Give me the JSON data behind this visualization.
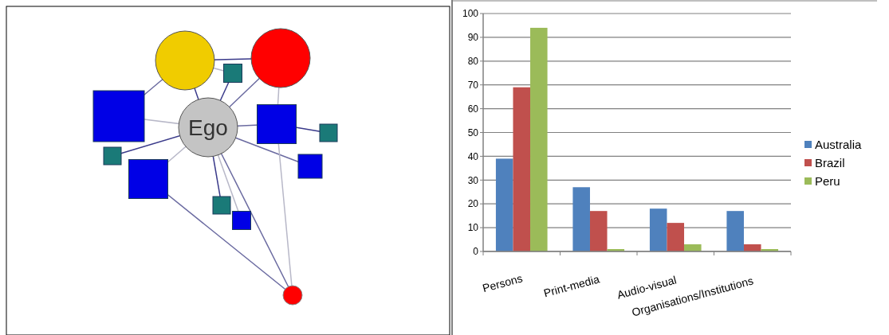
{
  "chart_data": [
    {
      "type": "other",
      "annotations": [
        "Ego"
      ]
    },
    {
      "type": "bar",
      "categories": [
        "Persons",
        "Print-media",
        "Audio-visual",
        "Organisations/Institutions"
      ],
      "series": [
        {
          "name": "Australia",
          "color": "#4f81bd",
          "values": [
            39,
            27,
            18,
            17
          ]
        },
        {
          "name": "Brazil",
          "color": "#c0504d",
          "values": [
            69,
            17,
            12,
            3
          ]
        },
        {
          "name": "Peru",
          "color": "#9bbb59",
          "values": [
            94,
            1,
            3,
            1
          ]
        }
      ],
      "ylim": [
        0,
        100
      ],
      "yticks": [
        0,
        10,
        20,
        30,
        40,
        50,
        60,
        70,
        80,
        90,
        100
      ],
      "grid": "y",
      "legend": "right"
    }
  ]
}
